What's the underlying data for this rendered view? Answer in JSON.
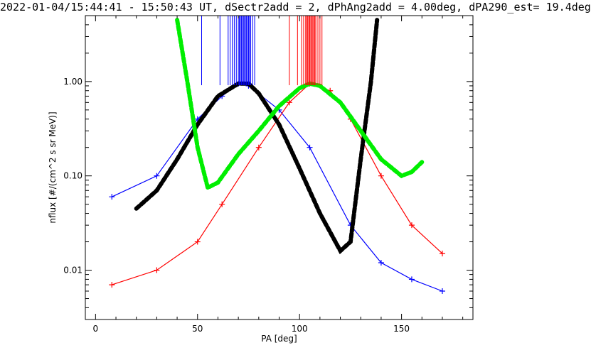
{
  "chart_data": {
    "type": "line",
    "title": "2022-01-04/15:44:41 - 15:50:43 UT, dSectr2add = 2, dPhAng2add = 4.00deg, dPA290_est=  19.4deg",
    "xlabel": "PA [deg]",
    "ylabel": "nflux [#/(cm^2 s sr MeV)]",
    "xlim": [
      -5,
      185
    ],
    "ylim": [
      0.003,
      5.0
    ],
    "yscale": "log",
    "xticks": [
      0,
      50,
      100,
      150
    ],
    "xtick_labels": [
      "0",
      "50",
      "100",
      "150"
    ],
    "yticks": [
      0.01,
      0.1,
      1.0
    ],
    "ytick_labels": [
      "0.01",
      "0.10",
      "1.00"
    ],
    "grid": false,
    "colors": {
      "blue": "#0000ff",
      "red": "#ff0000",
      "black": "#000000",
      "green": "#00ee00"
    },
    "vertical_markers": {
      "blue": [
        52,
        61,
        65,
        66,
        67,
        68,
        69,
        70,
        70.5,
        71,
        71.5,
        72,
        72.5,
        73,
        73.5,
        74,
        74.5,
        75,
        75.5,
        76,
        77,
        78
      ],
      "red": [
        95,
        99,
        101,
        102,
        103,
        103.5,
        104,
        104.5,
        105,
        105.5,
        106,
        106.5,
        107,
        107.5,
        108,
        109,
        110,
        111
      ]
    },
    "series": [
      {
        "color": "blue",
        "style": "line+cross",
        "x": [
          8,
          30,
          50,
          62,
          70,
          75,
          90,
          105,
          125,
          140,
          155,
          170
        ],
        "y": [
          0.06,
          0.1,
          0.4,
          0.7,
          0.95,
          0.9,
          0.5,
          0.2,
          0.03,
          0.012,
          0.008,
          0.006
        ]
      },
      {
        "color": "red",
        "style": "line+cross",
        "x": [
          8,
          30,
          50,
          62,
          80,
          95,
          105,
          115,
          125,
          140,
          155,
          170
        ],
        "y": [
          0.007,
          0.01,
          0.02,
          0.05,
          0.2,
          0.6,
          0.95,
          0.8,
          0.4,
          0.1,
          0.03,
          0.015
        ]
      },
      {
        "color": "black",
        "style": "thick-dashed",
        "x": [
          20,
          30,
          40,
          50,
          60,
          70,
          75,
          80,
          90,
          100,
          110,
          120,
          125,
          130,
          135,
          138
        ],
        "y": [
          0.045,
          0.07,
          0.15,
          0.35,
          0.7,
          0.95,
          0.95,
          0.75,
          0.35,
          0.12,
          0.04,
          0.016,
          0.02,
          0.15,
          1.0,
          4.5
        ]
      },
      {
        "color": "green",
        "style": "thick-dashed",
        "x": [
          40,
          45,
          50,
          55,
          60,
          70,
          80,
          90,
          100,
          105,
          110,
          120,
          130,
          140,
          150,
          155,
          160
        ],
        "y": [
          4.5,
          1.0,
          0.2,
          0.075,
          0.085,
          0.17,
          0.3,
          0.55,
          0.85,
          0.95,
          0.9,
          0.6,
          0.3,
          0.15,
          0.1,
          0.11,
          0.14
        ]
      }
    ]
  }
}
